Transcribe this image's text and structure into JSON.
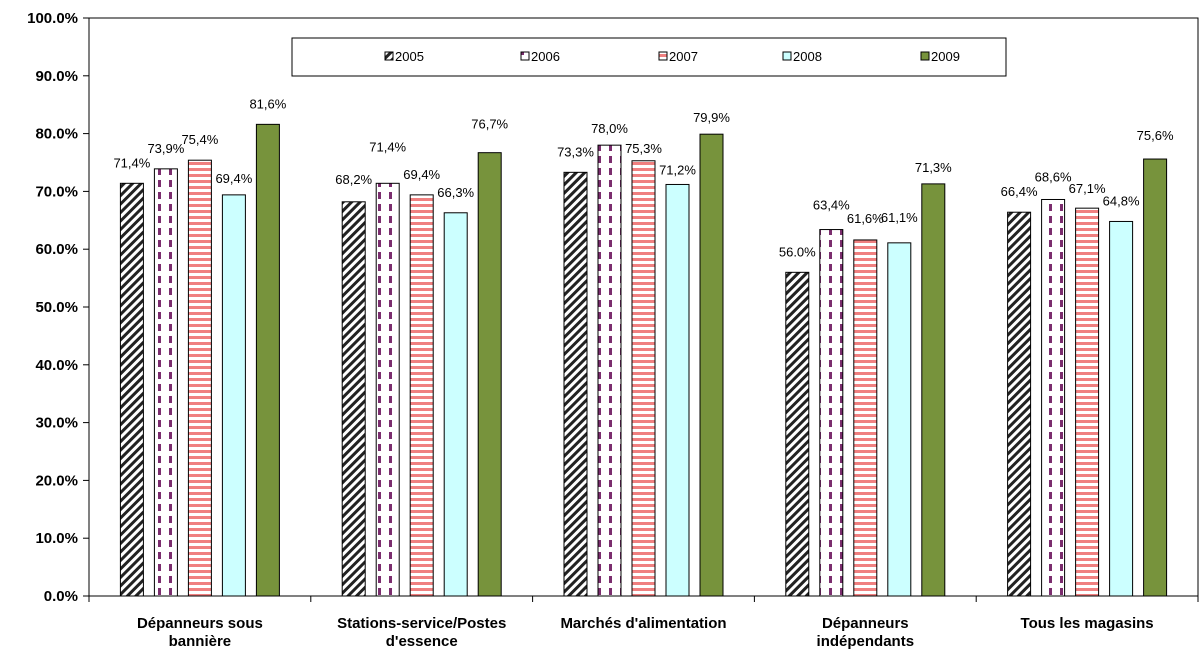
{
  "chart_data": {
    "type": "bar",
    "title": "",
    "xlabel": "",
    "ylabel": "",
    "ylim": [
      0,
      100
    ],
    "y_ticks": [
      "0.0%",
      "10.0%",
      "20.0%",
      "30.0%",
      "40.0%",
      "50.0%",
      "60.0%",
      "70.0%",
      "80.0%",
      "90.0%",
      "100.0%"
    ],
    "legend_position": "top",
    "grid": false,
    "categories": [
      [
        "Dépanneurs sous",
        "bannière"
      ],
      [
        "Stations-service/Postes",
        "d'essence"
      ],
      [
        "Marchés d'alimentation"
      ],
      [
        "Dépanneurs",
        "indépendants"
      ],
      [
        "Tous les magasins"
      ]
    ],
    "series": [
      {
        "name": "2005",
        "values": [
          71.4,
          68.2,
          73.3,
          56.0,
          66.4
        ],
        "labels": [
          "71,4%",
          "68,2%",
          "73,3%",
          "56.0%",
          "66,4%"
        ],
        "pattern": "diagonal-hatch",
        "color": "#222222"
      },
      {
        "name": "2006",
        "values": [
          73.9,
          71.4,
          78.0,
          63.4,
          68.6
        ],
        "labels": [
          "73,9%",
          "71,4%",
          "78,0%",
          "63,4%",
          "68,6%"
        ],
        "pattern": "vertical-dash",
        "color": "#7B2D6E"
      },
      {
        "name": "2007",
        "values": [
          75.4,
          69.4,
          75.3,
          61.6,
          67.1
        ],
        "labels": [
          "75,4%",
          "69,4%",
          "75,3%",
          "61,6%",
          "67,1%"
        ],
        "pattern": "horizontal-stripes",
        "color": "#F08080"
      },
      {
        "name": "2008",
        "values": [
          69.4,
          66.3,
          71.2,
          61.1,
          64.8
        ],
        "labels": [
          "69,4%",
          "66,3%",
          "71,2%",
          "61,1%",
          "64,8%"
        ],
        "pattern": "solid",
        "color": "#CCFFFF"
      },
      {
        "name": "2009",
        "values": [
          81.6,
          76.7,
          79.9,
          71.3,
          75.6
        ],
        "labels": [
          "81,6%",
          "76,7%",
          "79,9%",
          "71,3%",
          "75,6%"
        ],
        "pattern": "solid",
        "color": "#77933C"
      }
    ]
  }
}
